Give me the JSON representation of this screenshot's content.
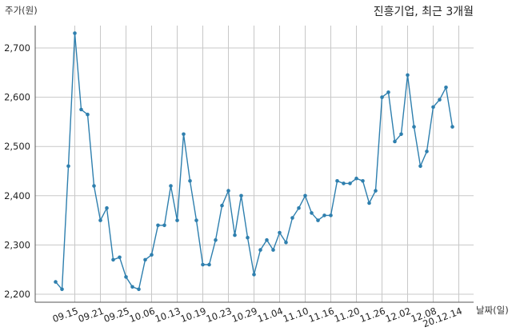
{
  "chart_data": {
    "type": "line",
    "title": "진흥기업, 최근 3개월",
    "ylabel": "주가(원)",
    "xlabel": "날짜(일)",
    "ylim": [
      2190,
      2740
    ],
    "y_ticks": [
      2200,
      2300,
      2400,
      2500,
      2600,
      2700
    ],
    "y_tick_labels": [
      "2,200",
      "2,300",
      "2,400",
      "2,500",
      "2,600",
      "2,700"
    ],
    "x_ticks": [
      {
        "index": 3,
        "label": "09.15"
      },
      {
        "index": 7,
        "label": "09.21"
      },
      {
        "index": 11,
        "label": "09.25"
      },
      {
        "index": 15,
        "label": "10.06"
      },
      {
        "index": 19,
        "label": "10.13"
      },
      {
        "index": 23,
        "label": "10.19"
      },
      {
        "index": 27,
        "label": "10.23"
      },
      {
        "index": 31,
        "label": "10.29"
      },
      {
        "index": 35,
        "label": "11.04"
      },
      {
        "index": 39,
        "label": "11.10"
      },
      {
        "index": 43,
        "label": "11.16"
      },
      {
        "index": 47,
        "label": "11.20"
      },
      {
        "index": 51,
        "label": "11.26"
      },
      {
        "index": 55,
        "label": "12.02"
      },
      {
        "index": 59,
        "label": "12.08"
      },
      {
        "index": 63,
        "label": "20.12.14"
      }
    ],
    "grid": true,
    "series": [
      {
        "color": "#2e7fae",
        "values": [
          2225,
          2210,
          2460,
          2730,
          2575,
          2565,
          2420,
          2350,
          2375,
          2270,
          2275,
          2235,
          2215,
          2210,
          2270,
          2280,
          2340,
          2340,
          2420,
          2350,
          2525,
          2430,
          2350,
          2260,
          2260,
          2310,
          2380,
          2410,
          2320,
          2400,
          2315,
          2240,
          2290,
          2310,
          2290,
          2325,
          2305,
          2355,
          2375,
          2400,
          2365,
          2350,
          2360,
          2360,
          2430,
          2425,
          2425,
          2435,
          2430,
          2385,
          2410,
          2600,
          2610,
          2510,
          2525,
          2645,
          2540,
          2460,
          2490,
          2580,
          2595,
          2620,
          2540
        ]
      }
    ]
  }
}
